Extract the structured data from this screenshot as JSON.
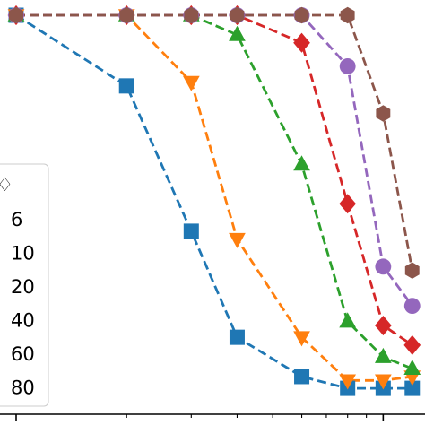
{
  "chart_data": {
    "type": "line",
    "title": "",
    "xlabel": "",
    "ylabel": "",
    "x_scale": "log",
    "xlim": [
      1.0,
      13.0
    ],
    "ylim": [
      -0.02,
      1.02
    ],
    "grid": false,
    "legend": {
      "placement": "lower-left",
      "title": "♢",
      "entries": [
        "6",
        "10",
        "20",
        "40",
        "60",
        "80"
      ]
    },
    "series": [
      {
        "name": "6",
        "color": "#1f77b4",
        "marker": "square",
        "x": [
          1.0,
          2.0,
          3.0,
          4.0,
          6.0,
          8.0,
          10.0,
          12.0
        ],
        "y": [
          1.0,
          0.82,
          0.45,
          0.18,
          0.08,
          0.05,
          0.05,
          0.05
        ]
      },
      {
        "name": "10",
        "color": "#ff7f0e",
        "marker": "triangle-down",
        "x": [
          1.0,
          2.0,
          3.0,
          4.0,
          6.0,
          8.0,
          10.0,
          12.0
        ],
        "y": [
          1.0,
          1.0,
          0.83,
          0.43,
          0.18,
          0.07,
          0.07,
          0.08
        ]
      },
      {
        "name": "20",
        "color": "#2ca02c",
        "marker": "triangle-up",
        "x": [
          1.0,
          2.0,
          3.0,
          4.0,
          6.0,
          8.0,
          10.0,
          12.0
        ],
        "y": [
          1.0,
          1.0,
          1.0,
          0.95,
          0.62,
          0.22,
          0.13,
          0.1
        ]
      },
      {
        "name": "40",
        "color": "#d62728",
        "marker": "diamond",
        "x": [
          1.0,
          2.0,
          3.0,
          4.0,
          6.0,
          8.0,
          10.0,
          12.0
        ],
        "y": [
          1.0,
          1.0,
          1.0,
          1.0,
          0.93,
          0.52,
          0.21,
          0.16
        ]
      },
      {
        "name": "60",
        "color": "#9467bd",
        "marker": "circle",
        "x": [
          1.0,
          2.0,
          3.0,
          4.0,
          6.0,
          8.0,
          10.0,
          12.0
        ],
        "y": [
          1.0,
          1.0,
          1.0,
          1.0,
          1.0,
          0.87,
          0.36,
          0.26
        ]
      },
      {
        "name": "80",
        "color": "#8c564b",
        "marker": "hexagon",
        "x": [
          1.0,
          2.0,
          3.0,
          4.0,
          6.0,
          8.0,
          10.0,
          12.0
        ],
        "y": [
          1.0,
          1.0,
          1.0,
          1.0,
          1.0,
          1.0,
          0.75,
          0.35
        ]
      }
    ]
  }
}
